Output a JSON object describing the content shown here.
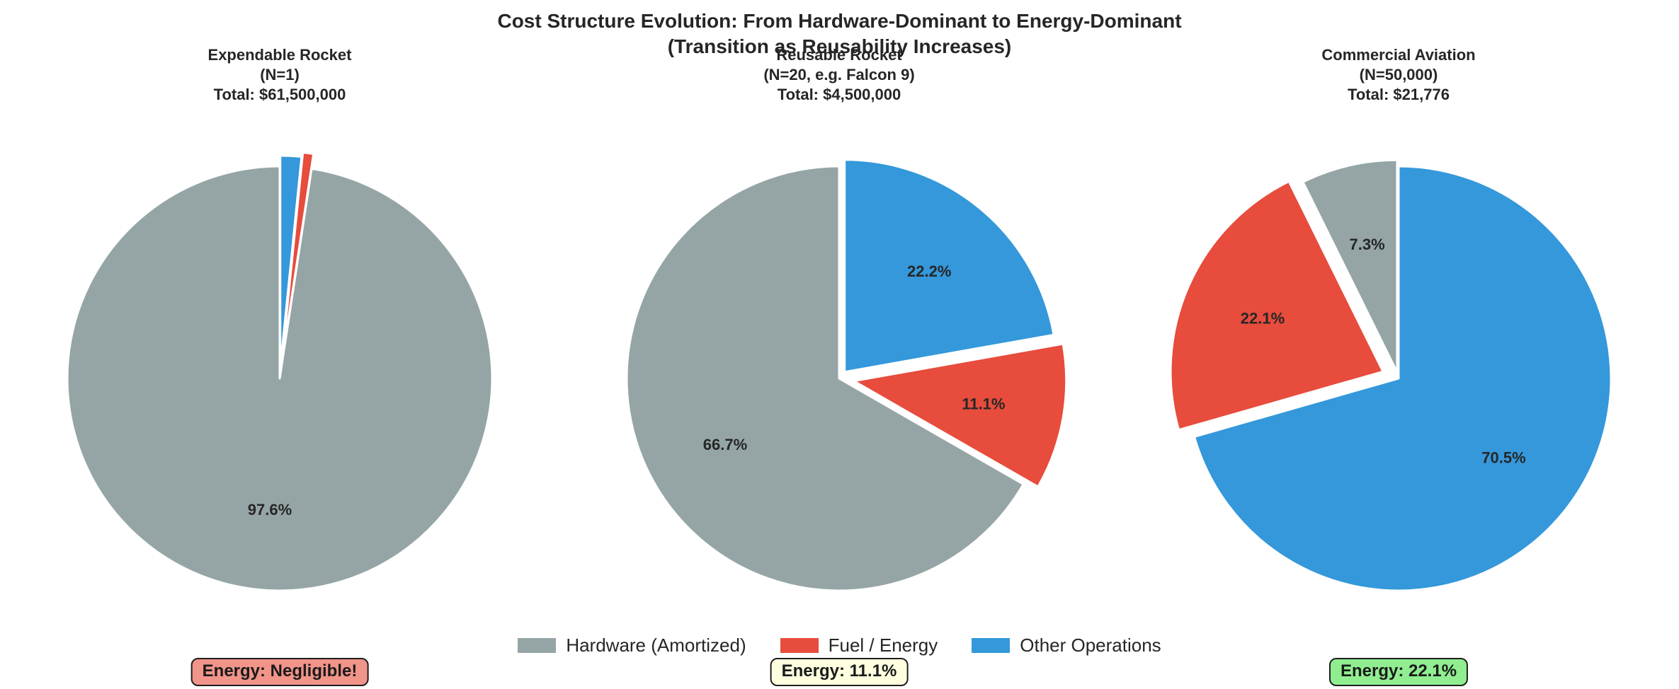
{
  "figure": {
    "suptitle_line1": "Cost Structure Evolution: From Hardware-Dominant to Energy-Dominant",
    "suptitle_line2": "(Transition as Reusability Increases)",
    "background": "#ffffff"
  },
  "palette": {
    "hardware": "#95a5a6",
    "fuel": "#e74c3c",
    "other": "#3498db",
    "label_text": "#262626",
    "wedge_edge": "#ffffff"
  },
  "legend": {
    "position": "bottom-center",
    "items": [
      {
        "label": "Hardware (Amortized)",
        "color": "#95a5a6"
      },
      {
        "label": "Fuel / Energy",
        "color": "#e74c3c"
      },
      {
        "label": "Other Operations",
        "color": "#3498db"
      }
    ]
  },
  "chart_data": [
    {
      "type": "pie",
      "title": "Expendable Rocket",
      "subtitle": "(N=1)",
      "total": "Total: $61,500,000",
      "categories": [
        "Hardware (Amortized)",
        "Fuel / Energy",
        "Other Operations"
      ],
      "values": [
        97.6,
        0.8,
        1.6
      ],
      "pct_labels": [
        "97.6%",
        "",
        ""
      ],
      "colors": [
        "#95a5a6",
        "#e74c3c",
        "#3498db"
      ],
      "explode": [
        0,
        0.07,
        0.05
      ],
      "start_angle": 90,
      "direction": "counterclockwise",
      "annotation": "Energy: Negligible!"
    },
    {
      "type": "pie",
      "title": "Reusable Rocket",
      "subtitle": "(N=20, e.g. Falcon 9)",
      "total": "Total: $4,500,000",
      "categories": [
        "Hardware (Amortized)",
        "Fuel / Energy",
        "Other Operations"
      ],
      "values": [
        66.7,
        11.1,
        22.2
      ],
      "pct_labels": [
        "66.7%",
        "11.1%",
        "22.2%"
      ],
      "colors": [
        "#95a5a6",
        "#e74c3c",
        "#3498db"
      ],
      "explode": [
        0,
        0.07,
        0.04
      ],
      "start_angle": 90,
      "direction": "counterclockwise",
      "annotation": "Energy: 11.1%"
    },
    {
      "type": "pie",
      "title": "Commercial Aviation",
      "subtitle": "(N=50,000)",
      "total": "Total: $21,776",
      "categories": [
        "Hardware (Amortized)",
        "Fuel / Energy",
        "Other Operations"
      ],
      "values": [
        7.3,
        22.1,
        70.5
      ],
      "pct_labels": [
        "7.3%",
        "22.1%",
        "70.5%"
      ],
      "colors": [
        "#95a5a6",
        "#e74c3c",
        "#3498db"
      ],
      "explode": [
        0.03,
        0.08,
        0
      ],
      "start_angle": 90,
      "direction": "counterclockwise",
      "annotation": "Energy: 22.1%"
    }
  ],
  "annotations": [
    {
      "text": "Energy: Negligible!",
      "bg": "#f1948a",
      "border": "#1f1f1f"
    },
    {
      "text": "Energy: 11.1%",
      "bg": "#ffffe0",
      "border": "#1f1f1f"
    },
    {
      "text": "Energy: 22.1%",
      "bg": "#90ee90",
      "border": "#1f1f1f"
    }
  ]
}
